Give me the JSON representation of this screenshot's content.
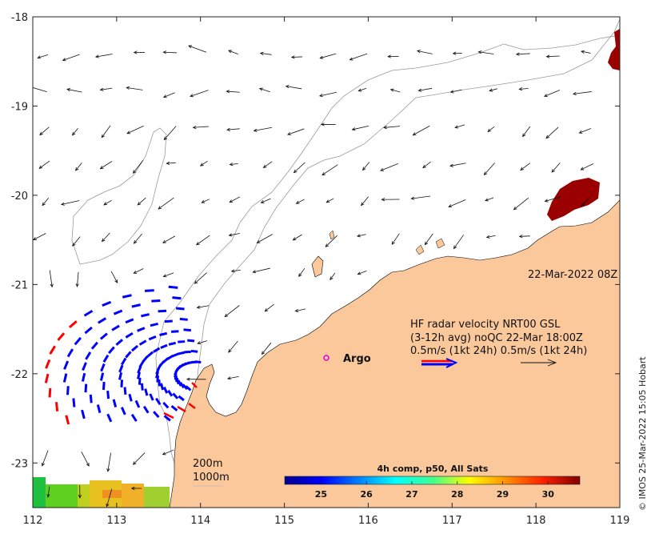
{
  "axes": {
    "x_ticks": [
      "112",
      "113",
      "114",
      "115",
      "116",
      "117",
      "118",
      "119"
    ],
    "y_ticks": [
      "-18",
      "-19",
      "-20",
      "-21",
      "-22",
      "-23"
    ],
    "lon_range": [
      112,
      119
    ],
    "lat_range": [
      -23.5,
      -18
    ]
  },
  "annotations": {
    "timestamp": "22-Mar-2022 08Z",
    "legend_line1": "HF radar velocity  NRT00 GSL",
    "legend_line2": "(3-12h avg) noQC 22-Mar 18:00Z",
    "legend_line3": "0.5m/s (1kt 24h)  0.5m/s (1kt 24h)",
    "argo_label": "Argo",
    "depth_200": "200m",
    "depth_1000": "1000m",
    "credit": "© IMOS 25-Mar-2022 15:05 Hobart"
  },
  "colorbar": {
    "title": "4h comp, p50, All Sats",
    "ticks": [
      "25",
      "26",
      "27",
      "28",
      "29",
      "30"
    ],
    "range": [
      24.2,
      30.7
    ]
  },
  "colors": {
    "land": "#fac89b",
    "hf_radar": "#0000ff",
    "hf_radar_edge": "#ff0000",
    "argo": "#e000e0",
    "sst_high": "#9b0000"
  },
  "icons": {
    "argo_marker": "argo-float-icon"
  }
}
